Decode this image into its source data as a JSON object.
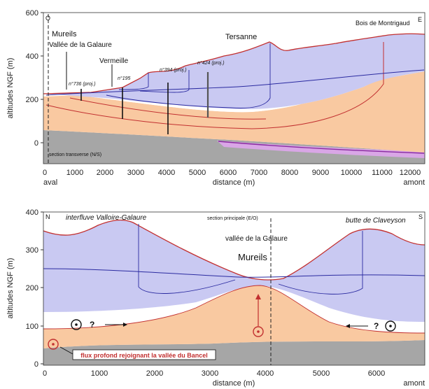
{
  "top_panel": {
    "corner_left": "O",
    "corner_right": "E",
    "ylabel": "altitudes NGF (m)",
    "xlabel": "distance (m)",
    "left_end": "aval",
    "right_end": "amont",
    "y_ticks": [
      "600",
      "400",
      "200",
      "0"
    ],
    "x_ticks": [
      "0",
      "1000",
      "2000",
      "3000",
      "4000",
      "5000",
      "6000",
      "7000",
      "8000",
      "9000",
      "10000",
      "11000",
      "12000"
    ],
    "labels": {
      "mureils": "Mureils",
      "vallee": "Vallée de la Galaure",
      "vermeille": "Vermeille",
      "tersanne": "Tersanne",
      "bois": "Bois de Montrigaud",
      "well_736": "n°736 (proj.)",
      "well_195": "n°195",
      "well_394": "n°394 (proj.)",
      "well_424": "n°424 (proj.)",
      "section": "section transverse (N/S)"
    }
  },
  "bottom_panel": {
    "corner_left": "N",
    "corner_right": "S",
    "ylabel": "altitudes NGF (m)",
    "xlabel": "distance (m)",
    "right_end": "amont",
    "y_ticks": [
      "400",
      "300",
      "200",
      "100",
      "0"
    ],
    "x_ticks": [
      "0",
      "1000",
      "2000",
      "3000",
      "4000",
      "5000",
      "6000"
    ],
    "labels": {
      "interfluve": "interfluve Valloire-Galaure",
      "butte": "butte de Claveyson",
      "section": "section principale (E/O)",
      "vallee": "vallée de la Galaure",
      "mureils": "Mureils",
      "question_left": "?",
      "question_right": "?",
      "flux": "flux profond rejoignant la vallée du Bancel"
    }
  },
  "colors": {
    "blue_zone": "#c9c9f2",
    "orange_zone": "#f9c9a1",
    "grey_zone": "#a6a6a6",
    "violet_zone": "#d9a6e6",
    "topo_line": "#c23030",
    "flow_line": "#2a2aa0"
  }
}
